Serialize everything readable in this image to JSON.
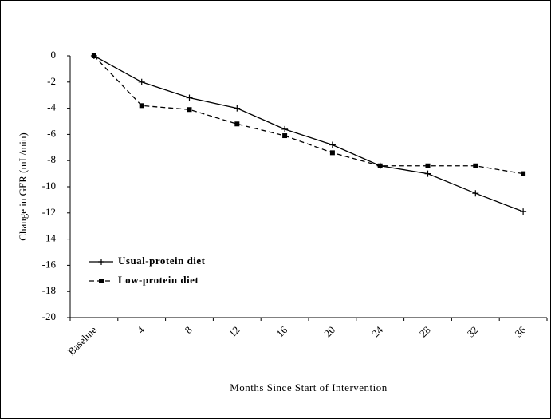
{
  "chart_data": {
    "type": "line",
    "x_label": "Months Since Start of Intervention",
    "y_label": "Change in GFR (mL/min)",
    "categories": [
      "Baseline",
      "4",
      "8",
      "12",
      "16",
      "20",
      "24",
      "28",
      "32",
      "36"
    ],
    "series": [
      {
        "name": "Usual-protein diet",
        "color": "#000000",
        "marker": "plus",
        "dash": "solid",
        "values": [
          0,
          -2,
          -3.2,
          -4,
          -5.6,
          -6.8,
          -8.4,
          -9,
          -10.5,
          -11.9
        ]
      },
      {
        "name": "Low-protein diet",
        "color": "#000000",
        "marker": "square",
        "dash": "dashed",
        "values": [
          0,
          -3.8,
          -4.1,
          -5.2,
          -6.1,
          -7.4,
          -8.4,
          -8.4,
          -8.4,
          -9
        ]
      }
    ],
    "ylim": [
      -20,
      0
    ],
    "yticks": [
      0,
      -2,
      -4,
      -6,
      -8,
      -10,
      -12,
      -14,
      -16,
      -18,
      -20
    ],
    "grid": false,
    "legend": "lower left"
  }
}
